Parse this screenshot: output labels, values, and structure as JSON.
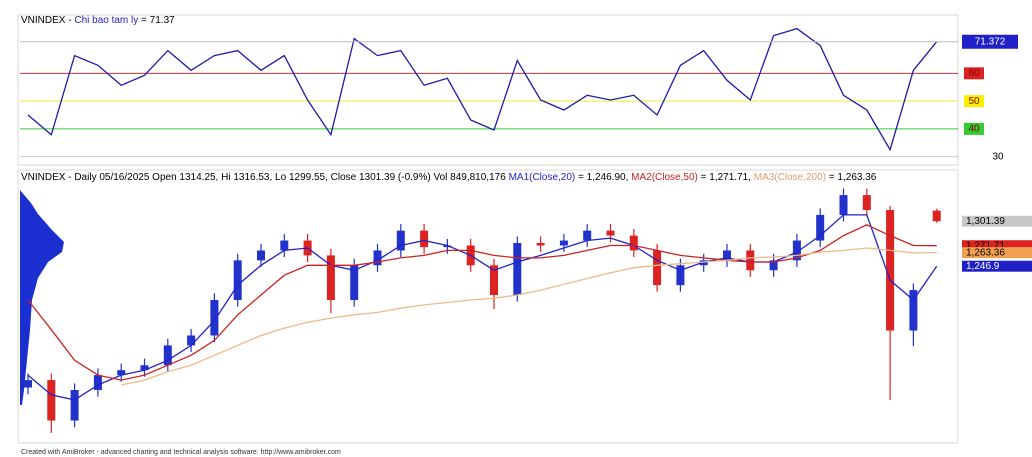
{
  "chart_data": [
    {
      "type": "line",
      "title_parts": [
        {
          "text": "VNINDEX - ",
          "color": "#000000"
        },
        {
          "text": "Chi bao tam ly",
          "color": "#2222bb"
        },
        {
          "text": " = 71.37",
          "color": "#000000"
        }
      ],
      "series": [
        {
          "name": "Chi bao tam ly",
          "color": "#1c1ca8",
          "values": [
            45.0,
            37.9,
            66.4,
            62.9,
            55.7,
            59.3,
            68.2,
            61.1,
            66.4,
            68.2,
            61.1,
            66.4,
            50.4,
            37.9,
            72.5,
            66.4,
            68.2,
            55.7,
            58.2,
            43.2,
            39.6,
            64.6,
            50.4,
            46.8,
            52.1,
            50.4,
            52.1,
            45.0,
            62.9,
            68.2,
            57.5,
            50.4,
            73.6,
            76.1,
            70.0,
            52.1,
            46.8,
            32.5,
            61.1,
            71.372
          ]
        }
      ],
      "last_tag": 71.372,
      "last_tag_color": "#2020c8",
      "ylim": [
        27,
        81
      ],
      "yticks": [
        30,
        40,
        50,
        60
      ],
      "tick_line_colors": [
        "#cccccc",
        "#33cc33",
        "#eeee33",
        "#cc3333"
      ],
      "tick_box_colors": [
        "none",
        "#33cc33",
        "#ffee00",
        "#dd2222"
      ]
    },
    {
      "type": "candlestick",
      "title_parts": [
        {
          "text": "VNINDEX - Daily 05/16/2025 Open 1314.25, Hi 1316.53, Lo 1299.55, Close 1301.39 (-0.9%) Vol 849,810,176 ",
          "color": "#000000"
        },
        {
          "text": "MA1(Close,20)",
          "color": "#2222cc"
        },
        {
          "text": " = 1,246.90, ",
          "color": "#000000"
        },
        {
          "text": "MA2(Close,50)",
          "color": "#cc2222"
        },
        {
          "text": " = 1,271.71, ",
          "color": "#000000"
        },
        {
          "text": "MA3(Close,200)",
          "color": "#e0a070"
        },
        {
          "text": " = 1,263.36",
          "color": "#000000"
        }
      ],
      "up_color": "#2233cc",
      "down_color": "#dd2222",
      "open": [
        1100,
        1109,
        1060,
        1097,
        1115,
        1121,
        1127,
        1151,
        1163,
        1206,
        1254,
        1266,
        1278,
        1260,
        1206,
        1248,
        1266,
        1290,
        1270,
        1272,
        1248,
        1212,
        1275,
        1272,
        1278,
        1290,
        1284,
        1266,
        1224,
        1248,
        1254,
        1266,
        1242,
        1254,
        1278,
        1309,
        1333,
        1315,
        1169,
        1314.25
      ],
      "high": [
        1117,
        1117,
        1105,
        1123,
        1129,
        1135,
        1159,
        1171,
        1214,
        1262,
        1274,
        1286,
        1286,
        1268,
        1256,
        1274,
        1298,
        1298,
        1280,
        1280,
        1256,
        1283,
        1283,
        1286,
        1298,
        1298,
        1292,
        1274,
        1256,
        1262,
        1274,
        1274,
        1262,
        1286,
        1317,
        1341,
        1341,
        1320,
        1226,
        1316.53
      ],
      "low": [
        1092,
        1045,
        1052,
        1089,
        1107,
        1113,
        1119,
        1143,
        1155,
        1198,
        1246,
        1258,
        1252,
        1190,
        1198,
        1240,
        1258,
        1262,
        1262,
        1240,
        1195,
        1204,
        1264,
        1264,
        1270,
        1276,
        1258,
        1216,
        1216,
        1240,
        1246,
        1234,
        1234,
        1246,
        1270,
        1301,
        1307,
        1085,
        1150,
        1299.55
      ],
      "close": [
        1109,
        1060,
        1097,
        1115,
        1121,
        1127,
        1151,
        1163,
        1206,
        1254,
        1266,
        1278,
        1260,
        1206,
        1248,
        1266,
        1290,
        1270,
        1272,
        1248,
        1212,
        1275,
        1272,
        1278,
        1290,
        1284,
        1266,
        1224,
        1248,
        1254,
        1266,
        1242,
        1254,
        1278,
        1309,
        1333,
        1315,
        1169,
        1218,
        1301.39
      ],
      "series": [
        {
          "name": "MA1(Close,20)",
          "color": "#2222cc",
          "values": [
            1115,
            1091,
            1085,
            1103,
            1115,
            1121,
            1133,
            1151,
            1181,
            1224,
            1248,
            1266,
            1269,
            1248,
            1242,
            1254,
            1272,
            1278,
            1272,
            1260,
            1242,
            1252,
            1260,
            1269,
            1278,
            1281,
            1272,
            1254,
            1242,
            1252,
            1257,
            1252,
            1252,
            1264,
            1284,
            1309,
            1309,
            1230,
            1206,
            1246.9
          ]
        },
        {
          "name": "MA2(Close,50)",
          "color": "#cc2222",
          "values": [
            1206,
            1170,
            1133,
            1115,
            1109,
            1115,
            1127,
            1139,
            1157,
            1188,
            1212,
            1236,
            1248,
            1248,
            1248,
            1252,
            1257,
            1260,
            1266,
            1266,
            1260,
            1257,
            1257,
            1260,
            1266,
            1272,
            1272,
            1266,
            1260,
            1257,
            1254,
            1252,
            1252,
            1257,
            1266,
            1284,
            1297,
            1284,
            1272,
            1271.71
          ]
        },
        {
          "name": "MA3(Close,200)",
          "color": "#f0b888",
          "values": [
            null,
            null,
            null,
            null,
            1103,
            1109,
            1119,
            1127,
            1139,
            1151,
            1163,
            1172,
            1179,
            1184,
            1188,
            1191,
            1196,
            1200,
            1203,
            1206,
            1208,
            1212,
            1218,
            1225,
            1232,
            1239,
            1245,
            1248,
            1250,
            1252,
            1254,
            1257,
            1258,
            1260,
            1264,
            1266,
            1269,
            1266,
            1263,
            1263.36
          ]
        }
      ],
      "price_tags": [
        {
          "value": 1301.39,
          "label": "1,301.39",
          "color": "#c8c8c8",
          "text_color": "#000000"
        },
        {
          "value": 1271.71,
          "label": "1,271.71",
          "color": "#dd2222",
          "text_color": "#000000"
        },
        {
          "value": 1263.36,
          "label": "1,263.36",
          "color": "#f0a050",
          "text_color": "#000000"
        },
        {
          "value": 1246.9,
          "label": "1,246.9",
          "color": "#2020c8",
          "text_color": "#ffffff"
        }
      ],
      "ylim": [
        1034,
        1361
      ]
    }
  ],
  "footer": "Created with AmiBroker - advanced charting and technical analysis software. http://www.amibroker.com"
}
